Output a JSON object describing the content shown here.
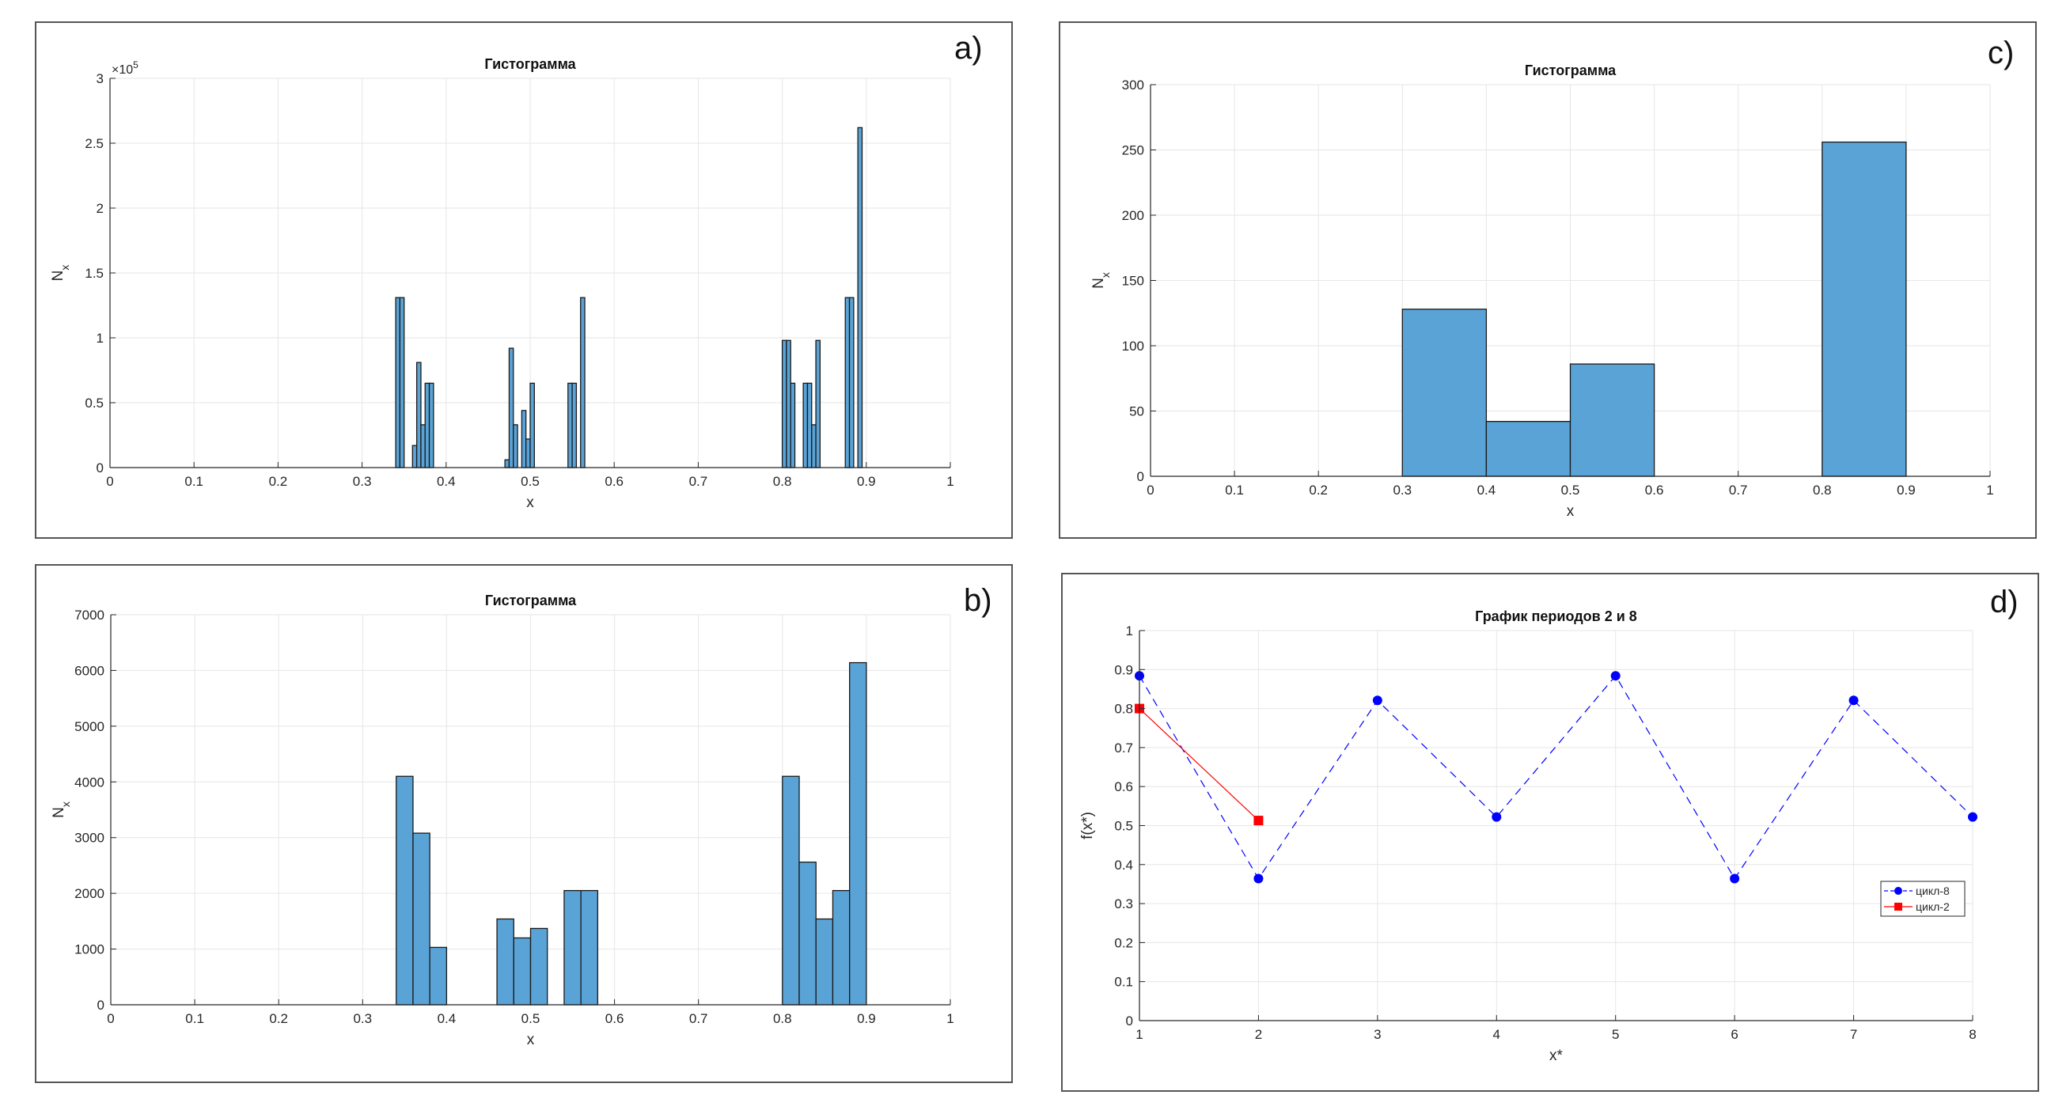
{
  "chart_data": [
    {
      "id": "a",
      "type": "bar",
      "panel_label": "a)",
      "title": "Гистограмма",
      "xlabel": "x",
      "ylabel": "N",
      "ylabel_sub": "x",
      "xlim": [
        0,
        1
      ],
      "ylim": [
        0,
        300000
      ],
      "yscale_label": "×10",
      "yscale_exp": "5",
      "xticks": [
        0,
        0.1,
        0.2,
        0.3,
        0.4,
        0.5,
        0.6,
        0.7,
        0.8,
        0.9,
        1
      ],
      "xtick_labels": [
        "0",
        "0.1",
        "0.2",
        "0.3",
        "0.4",
        "0.5",
        "0.6",
        "0.7",
        "0.8",
        "0.9",
        "1"
      ],
      "yticks": [
        0,
        50000,
        100000,
        150000,
        200000,
        250000,
        300000
      ],
      "ytick_labels": [
        "0",
        "0.5",
        "1",
        "1.5",
        "2",
        "2.5",
        "3"
      ],
      "grid": true,
      "bar_color": "#5aa3d6",
      "bins": [
        [
          0.34,
          0.345,
          131000
        ],
        [
          0.345,
          0.35,
          131000
        ],
        [
          0.36,
          0.365,
          17000
        ],
        [
          0.365,
          0.37,
          81000
        ],
        [
          0.37,
          0.375,
          33000
        ],
        [
          0.375,
          0.38,
          65000
        ],
        [
          0.38,
          0.385,
          65000
        ],
        [
          0.47,
          0.475,
          6000
        ],
        [
          0.475,
          0.48,
          92000
        ],
        [
          0.48,
          0.485,
          33000
        ],
        [
          0.49,
          0.495,
          44000
        ],
        [
          0.495,
          0.5,
          22000
        ],
        [
          0.5,
          0.505,
          65000
        ],
        [
          0.545,
          0.55,
          65000
        ],
        [
          0.55,
          0.555,
          65000
        ],
        [
          0.56,
          0.565,
          131000
        ],
        [
          0.8,
          0.805,
          98000
        ],
        [
          0.805,
          0.81,
          98000
        ],
        [
          0.81,
          0.815,
          65000
        ],
        [
          0.825,
          0.83,
          65000
        ],
        [
          0.83,
          0.835,
          65000
        ],
        [
          0.835,
          0.84,
          33000
        ],
        [
          0.84,
          0.845,
          98000
        ],
        [
          0.875,
          0.88,
          131000
        ],
        [
          0.88,
          0.885,
          131000
        ],
        [
          0.89,
          0.895,
          262000
        ]
      ]
    },
    {
      "id": "b",
      "type": "bar",
      "panel_label": "b)",
      "title": "Гистограмма",
      "xlabel": "x",
      "ylabel": "N",
      "ylabel_sub": "x",
      "xlim": [
        0,
        1
      ],
      "ylim": [
        0,
        7000
      ],
      "xticks": [
        0,
        0.1,
        0.2,
        0.3,
        0.4,
        0.5,
        0.6,
        0.7,
        0.8,
        0.9,
        1
      ],
      "xtick_labels": [
        "0",
        "0.1",
        "0.2",
        "0.3",
        "0.4",
        "0.5",
        "0.6",
        "0.7",
        "0.8",
        "0.9",
        "1"
      ],
      "yticks": [
        0,
        1000,
        2000,
        3000,
        4000,
        5000,
        6000,
        7000
      ],
      "ytick_labels": [
        "0",
        "1000",
        "2000",
        "3000",
        "4000",
        "5000",
        "6000",
        "7000"
      ],
      "grid": true,
      "bar_color": "#5aa3d6",
      "bins": [
        [
          0.34,
          0.36,
          4100
        ],
        [
          0.36,
          0.38,
          3080
        ],
        [
          0.38,
          0.4,
          1030
        ],
        [
          0.46,
          0.48,
          1540
        ],
        [
          0.48,
          0.5,
          1200
        ],
        [
          0.5,
          0.52,
          1370
        ],
        [
          0.54,
          0.56,
          2050
        ],
        [
          0.56,
          0.58,
          2050
        ],
        [
          0.8,
          0.82,
          4100
        ],
        [
          0.82,
          0.84,
          2560
        ],
        [
          0.84,
          0.86,
          1540
        ],
        [
          0.86,
          0.88,
          2050
        ],
        [
          0.88,
          0.9,
          6140
        ]
      ]
    },
    {
      "id": "c",
      "type": "bar",
      "panel_label": "c)",
      "title": "Гистограмма",
      "xlabel": "x",
      "ylabel": "N",
      "ylabel_sub": "x",
      "xlim": [
        0,
        1
      ],
      "ylim": [
        0,
        300
      ],
      "xticks": [
        0,
        0.1,
        0.2,
        0.3,
        0.4,
        0.5,
        0.6,
        0.7,
        0.8,
        0.9,
        1
      ],
      "xtick_labels": [
        "0",
        "0.1",
        "0.2",
        "0.3",
        "0.4",
        "0.5",
        "0.6",
        "0.7",
        "0.8",
        "0.9",
        "1"
      ],
      "yticks": [
        0,
        50,
        100,
        150,
        200,
        250,
        300
      ],
      "ytick_labels": [
        "0",
        "50",
        "100",
        "150",
        "200",
        "250",
        "300"
      ],
      "grid": true,
      "bar_color": "#5aa3d6",
      "bins": [
        [
          0.3,
          0.4,
          128
        ],
        [
          0.4,
          0.5,
          42
        ],
        [
          0.5,
          0.6,
          86
        ],
        [
          0.8,
          0.9,
          256
        ]
      ]
    },
    {
      "id": "d",
      "type": "line",
      "panel_label": "d)",
      "title": "График периодов 2 и 8",
      "xlabel": "x*",
      "ylabel": "f(x*)",
      "xlim": [
        1,
        8
      ],
      "ylim": [
        0,
        1
      ],
      "xticks": [
        1,
        2,
        3,
        4,
        5,
        6,
        7,
        8
      ],
      "xtick_labels": [
        "1",
        "2",
        "3",
        "4",
        "5",
        "6",
        "7",
        "8"
      ],
      "yticks": [
        0,
        0.1,
        0.2,
        0.3,
        0.4,
        0.5,
        0.6,
        0.7,
        0.8,
        0.9,
        1
      ],
      "ytick_labels": [
        "0",
        "0.1",
        "0.2",
        "0.3",
        "0.4",
        "0.5",
        "0.6",
        "0.7",
        "0.8",
        "0.9",
        "1"
      ],
      "grid": true,
      "legend_position": "right",
      "series": [
        {
          "name": "цикл-8",
          "color": "#0000ff",
          "line_style": "dashed",
          "marker": "circle",
          "x": [
            1,
            2,
            3,
            4,
            5,
            6,
            7,
            8
          ],
          "y": [
            0.884,
            0.364,
            0.821,
            0.522,
            0.884,
            0.364,
            0.821,
            0.522
          ]
        },
        {
          "name": "цикл-2",
          "color": "#ff0000",
          "line_style": "solid",
          "marker": "square",
          "x": [
            1,
            2
          ],
          "y": [
            0.8,
            0.513
          ]
        }
      ]
    }
  ]
}
